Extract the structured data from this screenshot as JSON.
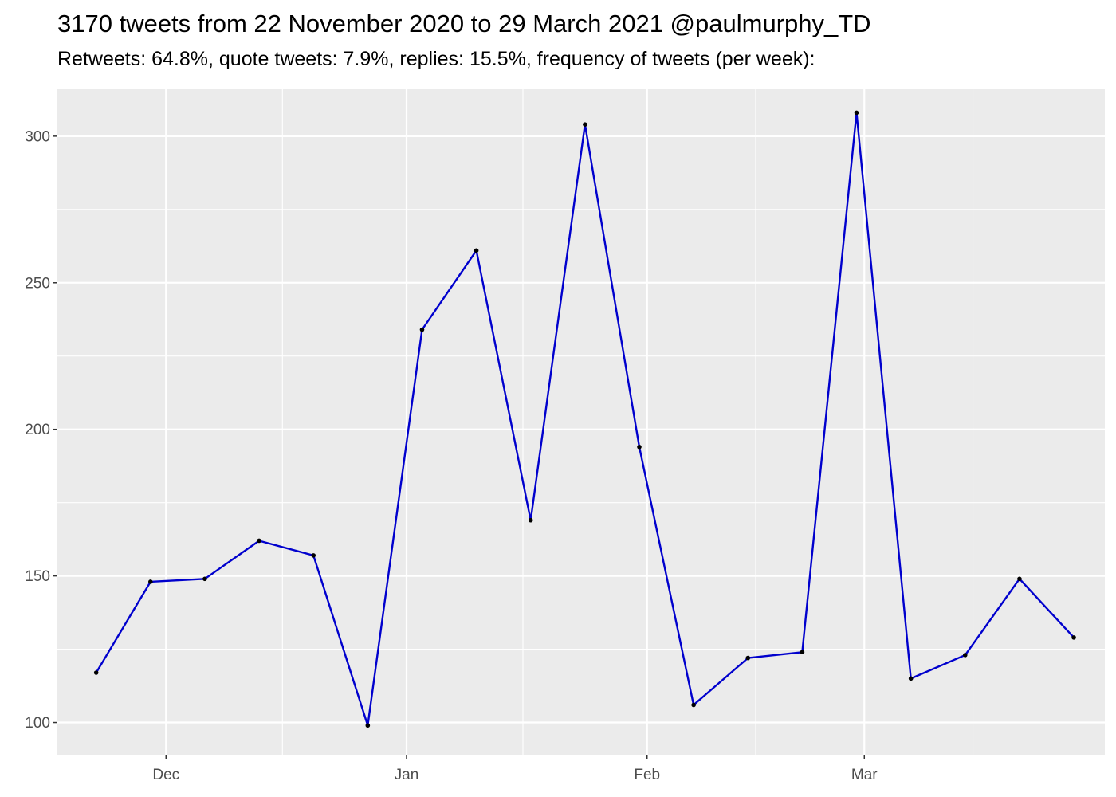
{
  "chart_data": {
    "type": "line",
    "title": "3170 tweets from 22 November 2020 to 29 March 2021 @paulmurphy_TD",
    "subtitle": "Retweets: 64.8%, quote tweets: 7.9%, replies: 15.5%, frequency of tweets (per week):",
    "xlabel": "",
    "ylabel": "",
    "x_type": "date",
    "x": [
      "2020-11-22",
      "2020-11-29",
      "2020-12-06",
      "2020-12-13",
      "2020-12-20",
      "2020-12-27",
      "2021-01-03",
      "2021-01-10",
      "2021-01-17",
      "2021-01-24",
      "2021-01-31",
      "2021-02-07",
      "2021-02-14",
      "2021-02-21",
      "2021-02-28",
      "2021-03-07",
      "2021-03-14",
      "2021-03-21",
      "2021-03-28"
    ],
    "series": [
      {
        "values": [
          117,
          148,
          149,
          162,
          157,
          99,
          234,
          261,
          169,
          304,
          194,
          106,
          122,
          124,
          308,
          115,
          123,
          149,
          129
        ]
      }
    ],
    "xlim": [
      "2020-11-17",
      "2021-04-01"
    ],
    "ylim": [
      89,
      316
    ],
    "x_ticks": [
      {
        "label": "Dec",
        "date": "2020-12-01"
      },
      {
        "label": "Jan",
        "date": "2021-01-01"
      },
      {
        "label": "Feb",
        "date": "2021-02-01"
      },
      {
        "label": "Mar",
        "date": "2021-03-01"
      }
    ],
    "y_ticks": [
      100,
      150,
      200,
      250,
      300
    ],
    "grid": true,
    "panel_color": "#ebebeb",
    "line_color": "#0000cd",
    "point_color": "#000000"
  }
}
